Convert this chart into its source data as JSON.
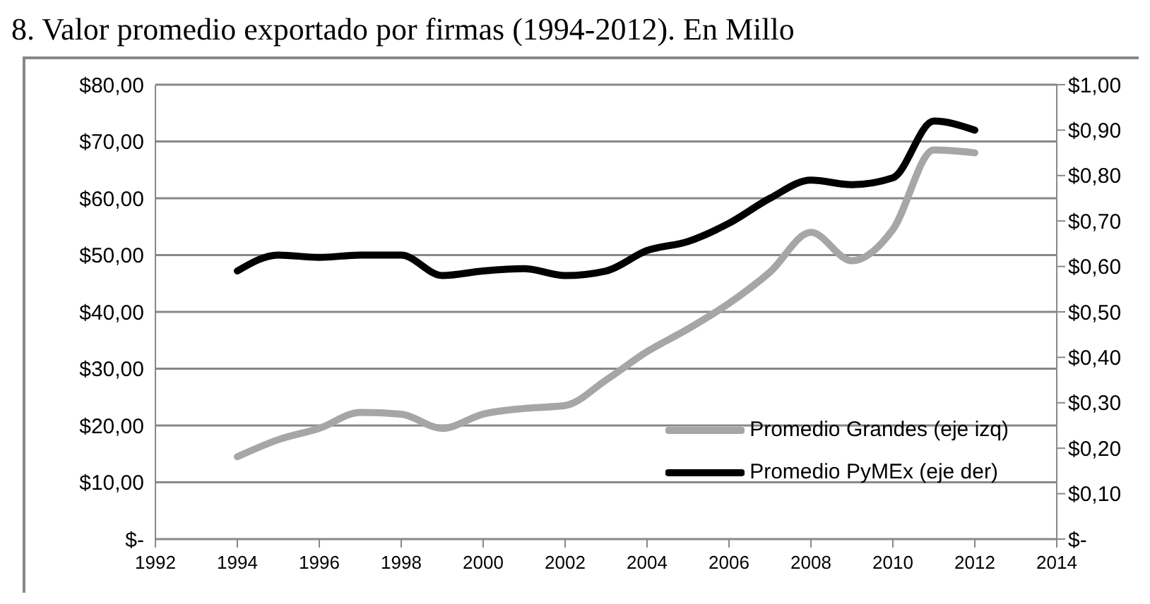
{
  "chart_data": {
    "type": "line",
    "title": "8. Valor promedio exportado por firmas (1994-2012). En Millo",
    "x": [
      1994,
      1995,
      1996,
      1997,
      1998,
      1999,
      2000,
      2001,
      2002,
      2003,
      2004,
      2005,
      2006,
      2007,
      2008,
      2009,
      2010,
      2011,
      2012
    ],
    "series": [
      {
        "name": "Promedio Grandes (eje izq)",
        "color": "#a6a6a6",
        "values": [
          14.5,
          17.5,
          19.5,
          22.3,
          22,
          19.5,
          22,
          23,
          23.5,
          28,
          33,
          37,
          41.5,
          47,
          54,
          49,
          54.5,
          68.5,
          68
        ]
      },
      {
        "name": "Promedio PyMEx (eje der)",
        "color": "#000000",
        "axis": "y2",
        "values": [
          0.59,
          0.625,
          0.62,
          0.625,
          0.625,
          0.58,
          0.59,
          0.595,
          0.58,
          0.59,
          0.635,
          0.655,
          0.695,
          0.75,
          0.79,
          0.78,
          0.795,
          0.92,
          0.9
        ]
      }
    ],
    "xlim": [
      1992,
      2014
    ],
    "xticks": [
      1992,
      1994,
      1996,
      1998,
      2000,
      2002,
      2004,
      2006,
      2008,
      2010,
      2012,
      2014
    ],
    "ylim": [
      0,
      80
    ],
    "yticks": [
      {
        "value": 0,
        "label": "$-"
      },
      {
        "value": 10,
        "label": "$10,00"
      },
      {
        "value": 20,
        "label": "$20,00"
      },
      {
        "value": 30,
        "label": "$30,00"
      },
      {
        "value": 40,
        "label": "$40,00"
      },
      {
        "value": 50,
        "label": "$50,00"
      },
      {
        "value": 60,
        "label": "$60,00"
      },
      {
        "value": 70,
        "label": "$70,00"
      },
      {
        "value": 80,
        "label": "$80,00"
      }
    ],
    "y2lim": [
      0,
      1
    ],
    "y2ticks": [
      {
        "value": 0,
        "label": "$-"
      },
      {
        "value": 0.1,
        "label": "$0,10"
      },
      {
        "value": 0.2,
        "label": "$0,20"
      },
      {
        "value": 0.3,
        "label": "$0,30"
      },
      {
        "value": 0.4,
        "label": "$0,40"
      },
      {
        "value": 0.5,
        "label": "$0,50"
      },
      {
        "value": 0.6,
        "label": "$0,60"
      },
      {
        "value": 0.7,
        "label": "$0,70"
      },
      {
        "value": 0.8,
        "label": "$0,80"
      },
      {
        "value": 0.9,
        "label": "$0,90"
      },
      {
        "value": 1,
        "label": "$1,00"
      }
    ],
    "grid": "y",
    "legend": "bottom right",
    "marker": "none",
    "line_style": "solid"
  }
}
